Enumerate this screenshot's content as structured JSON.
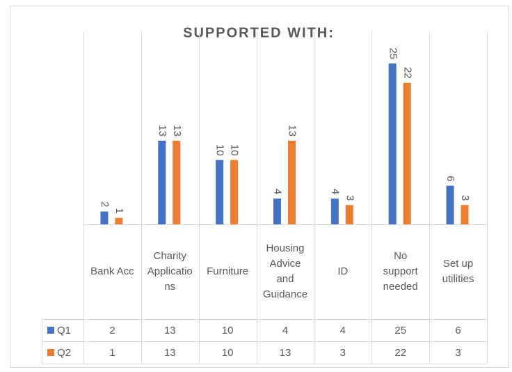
{
  "chart_data": {
    "type": "bar",
    "title": "SUPPORTED WITH:",
    "categories": [
      "Bank Acc",
      "Charity Applications",
      "Furniture",
      "Housing Advice and Guidance",
      "ID",
      "No support needed",
      "Set up utilities"
    ],
    "series": [
      {
        "name": "Q1",
        "color": "#4472c4",
        "values": [
          2,
          13,
          10,
          4,
          4,
          25,
          6
        ]
      },
      {
        "name": "Q2",
        "color": "#ed7d31",
        "values": [
          1,
          13,
          10,
          13,
          3,
          22,
          3
        ]
      }
    ],
    "ylim": [
      0,
      30
    ],
    "data_table": true
  }
}
